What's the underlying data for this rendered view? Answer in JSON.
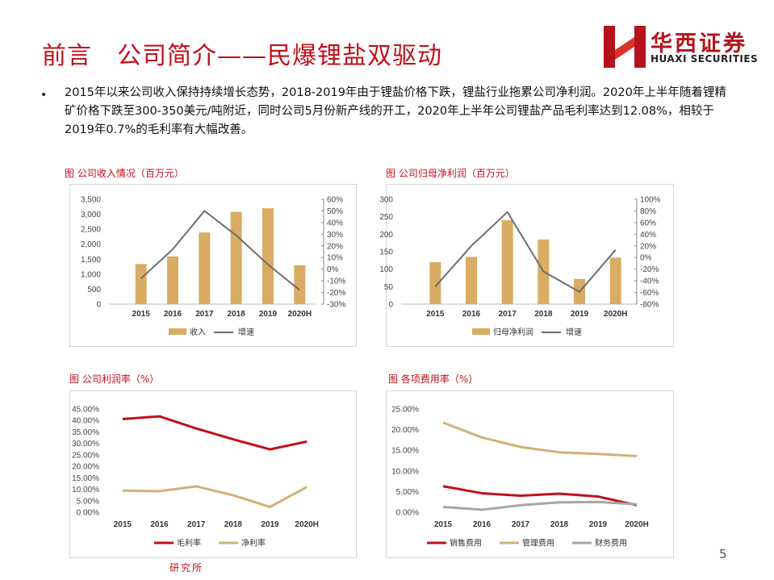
{
  "page": {
    "title": "前言　公司简介——民爆锂盐双驱动",
    "logo_cn": "华西证券",
    "logo_en": "HUAXI SECURITIES",
    "bullet_mark": "•",
    "bullet_text": "2015年以来公司收入保持持续增长态势，2018-2019年由于锂盐价格下跌，锂盐行业拖累公司净利润。2020年上半年随着锂精矿价格下跌至300-350美元/吨附近，同时公司5月份新产线的开工，2020年上半年公司锂盐产品毛利率达到12.08%，相较于2019年0.7%的毛利率有大幅改善。",
    "page_number": "5",
    "footer": "研究所"
  },
  "colors": {
    "bar": "#d8ac62",
    "grey_line": "#6e6e6e",
    "red_line": "#c0101a",
    "tan_line": "#d2b078",
    "light_grey_line": "#a6a6a6"
  },
  "chart_data": [
    {
      "type": "bar",
      "caption": "图 公司收入情况（百万元）",
      "categories": [
        "2015",
        "2016",
        "2017",
        "2018",
        "2019",
        "2020H"
      ],
      "series": [
        {
          "name": "收入",
          "kind": "bar",
          "axis": "left",
          "values": [
            1340,
            1590,
            2390,
            3080,
            3200,
            1300
          ]
        },
        {
          "name": "增速",
          "kind": "line",
          "axis": "right",
          "values": [
            -8,
            17,
            50,
            29,
            4,
            -18
          ]
        }
      ],
      "y_left": {
        "min": 0,
        "max": 3500,
        "ticks": [
          "0",
          "500",
          "1,000",
          "1,500",
          "2,000",
          "2,500",
          "3,000",
          "3,500"
        ]
      },
      "y_right": {
        "min": -30,
        "max": 60,
        "ticks": [
          "-30%",
          "-20%",
          "-10%",
          "0%",
          "10%",
          "20%",
          "30%",
          "40%",
          "50%",
          "60%"
        ]
      }
    },
    {
      "type": "bar",
      "caption": "图  公司归母净利润（百万元）",
      "categories": [
        "2015",
        "2016",
        "2017",
        "2018",
        "2019",
        "2020H"
      ],
      "series": [
        {
          "name": "归母净利润",
          "kind": "bar",
          "axis": "left",
          "values": [
            120,
            135,
            240,
            185,
            72,
            133
          ]
        },
        {
          "name": "增速",
          "kind": "line",
          "axis": "right",
          "values": [
            -50,
            20,
            78,
            -24,
            -59,
            13
          ]
        }
      ],
      "y_left": {
        "min": 0,
        "max": 300,
        "ticks": [
          "0",
          "50",
          "100",
          "150",
          "200",
          "250",
          "300"
        ]
      },
      "y_right": {
        "min": -80,
        "max": 100,
        "ticks": [
          "-80%",
          "-60%",
          "-40%",
          "-20%",
          "0%",
          "20%",
          "40%",
          "60%",
          "80%",
          "100%"
        ]
      }
    },
    {
      "type": "line",
      "caption": "图 公司利润率（%）",
      "categories": [
        "2015",
        "2016",
        "2017",
        "2018",
        "2019",
        "2020H"
      ],
      "series": [
        {
          "name": "毛利率",
          "color_key": "red_line",
          "values": [
            40.6,
            41.8,
            36.5,
            31.8,
            27.4,
            30.8
          ]
        },
        {
          "name": "净利率",
          "color_key": "tan_line",
          "values": [
            9.4,
            9.2,
            11.3,
            7.4,
            2.3,
            11.0
          ]
        }
      ],
      "y_left": {
        "min": 0,
        "max": 45,
        "ticks": [
          "0.00%",
          "5.00%",
          "10.00%",
          "15.00%",
          "20.00%",
          "25.00%",
          "30.00%",
          "35.00%",
          "40.00%",
          "45.00%"
        ]
      }
    },
    {
      "type": "line",
      "caption": "图 各项费用率（%）",
      "categories": [
        "2015",
        "2016",
        "2017",
        "2018",
        "2019",
        "2020H"
      ],
      "series": [
        {
          "name": "销售费用",
          "color_key": "red_line",
          "values": [
            6.3,
            4.6,
            4.0,
            4.5,
            3.8,
            1.7
          ]
        },
        {
          "name": "管理费用",
          "color_key": "tan_line",
          "values": [
            21.7,
            18.1,
            15.8,
            14.5,
            14.1,
            13.6
          ]
        },
        {
          "name": "财务费用",
          "color_key": "light_grey_line",
          "values": [
            1.3,
            0.6,
            1.7,
            2.4,
            2.5,
            1.9
          ]
        }
      ],
      "y_left": {
        "min": 0,
        "max": 25,
        "ticks": [
          "0.00%",
          "5.00%",
          "10.00%",
          "15.00%",
          "20.00%",
          "25.00%"
        ]
      }
    }
  ]
}
